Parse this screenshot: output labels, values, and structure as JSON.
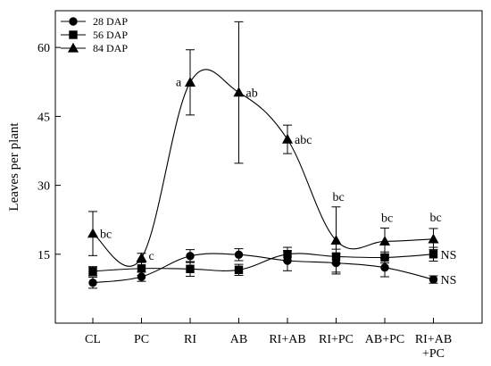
{
  "chart_data": {
    "type": "line",
    "title": "",
    "xlabel": "",
    "ylabel": "Leaves per plant",
    "ylim": [
      0,
      68
    ],
    "yticks": [
      15,
      30,
      45,
      60
    ],
    "grid": false,
    "legend_position": "top-left",
    "categories": [
      "CL",
      "PC",
      "RI",
      "AB",
      "RI+AB",
      "RI+PC",
      "AB+PC",
      "RI+AB\n+PC"
    ],
    "series": [
      {
        "name": "28 DAP",
        "marker": "circle",
        "values": [
          8.8,
          10.1,
          14.6,
          14.9,
          13.6,
          13.1,
          12.1,
          9.5
        ],
        "errors": [
          1.2,
          1.0,
          1.4,
          1.3,
          2.2,
          2.0,
          2.0,
          0.8
        ]
      },
      {
        "name": "56 DAP",
        "marker": "square",
        "values": [
          11.3,
          11.9,
          11.8,
          11.6,
          15.0,
          14.5,
          14.3,
          15.0
        ],
        "errors": [
          1.0,
          1.5,
          1.6,
          1.2,
          1.5,
          1.6,
          1.2,
          1.5
        ]
      },
      {
        "name": "84 DAP",
        "marker": "triangle",
        "values": [
          19.5,
          14.2,
          52.4,
          50.2,
          40.0,
          18.0,
          17.8,
          18.3
        ],
        "errors": [
          4.8,
          1.0,
          7.1,
          15.4,
          3.1,
          7.3,
          2.9,
          2.3
        ]
      }
    ],
    "annotations": [
      {
        "category": "CL",
        "series": "84 DAP",
        "text": "bc"
      },
      {
        "category": "PC",
        "series": "84 DAP",
        "text": "c"
      },
      {
        "category": "RI",
        "series": "84 DAP",
        "text": "a"
      },
      {
        "category": "AB",
        "series": "84 DAP",
        "text": "ab"
      },
      {
        "category": "RI+AB",
        "series": "84 DAP",
        "text": "abc"
      },
      {
        "category": "RI+PC",
        "series": "84 DAP",
        "text": "bc"
      },
      {
        "category": "AB+PC",
        "series": "84 DAP",
        "text": "bc"
      },
      {
        "category": "RI+AB\n+PC",
        "series": "84 DAP",
        "text": "bc"
      },
      {
        "category": "RI+AB\n+PC",
        "series": "56 DAP",
        "text": "NS"
      },
      {
        "category": "RI+AB\n+PC",
        "series": "28 DAP",
        "text": "NS"
      }
    ]
  }
}
